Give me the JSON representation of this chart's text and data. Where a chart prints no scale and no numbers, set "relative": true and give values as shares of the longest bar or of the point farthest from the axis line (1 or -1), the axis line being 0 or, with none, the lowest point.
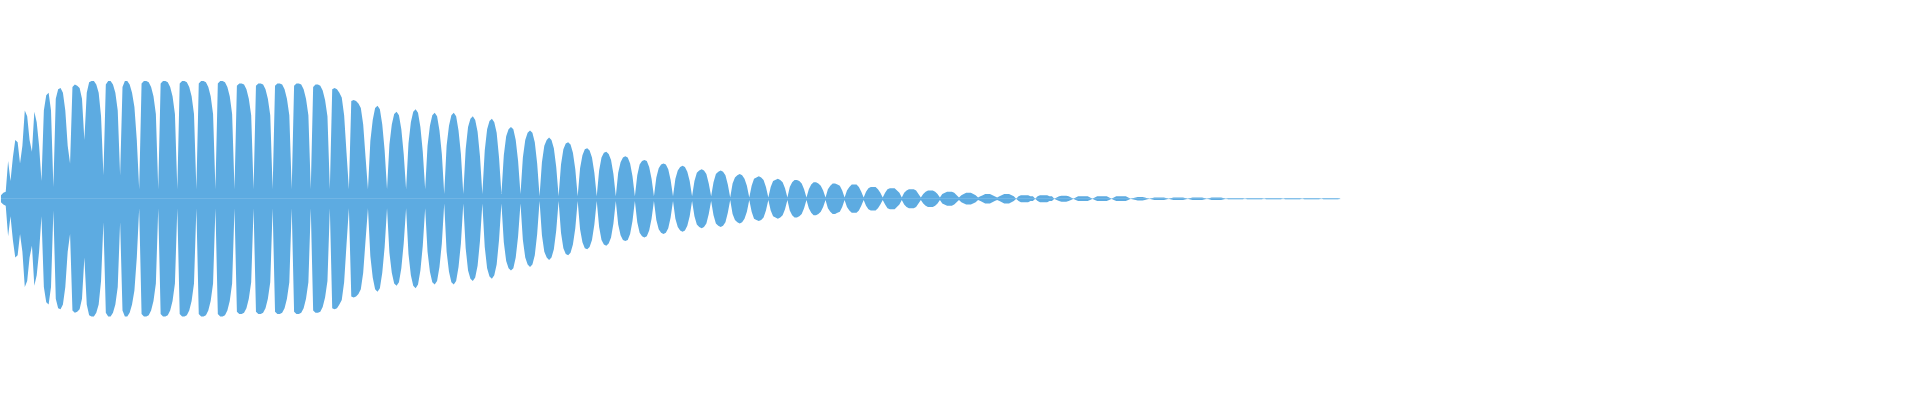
{
  "chart_data": {
    "type": "area",
    "relative": true,
    "categories": [
      null,
      null,
      null,
      null,
      null,
      null,
      null,
      null,
      null,
      null,
      null,
      null,
      null,
      null,
      null,
      null,
      null,
      null,
      null,
      null,
      null,
      null,
      null,
      null,
      null,
      null,
      null,
      null,
      null,
      null,
      null,
      null,
      null,
      null,
      null,
      null,
      null,
      null,
      null,
      null,
      null,
      null,
      null,
      null,
      null,
      null,
      null,
      null,
      null,
      null,
      null,
      null,
      null,
      null,
      null,
      null,
      null,
      null,
      null,
      null,
      null,
      null,
      null,
      null,
      null,
      null,
      null,
      null,
      null,
      null,
      null,
      null,
      null,
      null,
      null,
      null,
      null,
      null,
      null,
      null,
      null,
      null,
      null,
      null,
      null,
      null,
      null,
      null,
      null,
      null,
      null,
      null,
      null,
      null,
      null,
      null,
      null,
      null,
      null,
      null,
      null,
      null,
      null,
      null,
      null,
      null,
      null,
      null,
      null,
      null,
      null,
      null,
      null,
      null,
      null,
      null,
      null,
      null,
      null,
      null,
      null,
      null,
      null,
      null,
      null,
      null,
      null,
      null,
      null,
      null,
      null,
      null,
      null,
      null,
      null,
      null,
      null,
      null,
      null,
      null,
      null,
      null,
      null,
      null,
      null,
      null,
      null,
      null,
      null,
      null,
      null,
      null,
      null,
      null,
      null,
      null,
      null,
      null,
      null,
      null,
      null,
      null,
      null,
      null,
      null,
      null,
      null,
      null,
      null,
      null,
      null,
      null,
      null,
      null,
      null,
      null,
      null,
      null,
      null,
      null,
      null,
      null,
      null,
      null,
      null,
      null,
      null,
      null,
      null,
      null,
      null,
      null,
      null,
      null,
      null,
      null,
      null,
      null,
      null,
      null,
      null,
      null,
      null,
      null,
      null,
      null,
      null,
      null,
      null,
      null,
      null,
      null,
      null,
      null,
      null,
      null,
      null,
      null,
      null,
      null,
      null,
      null,
      null,
      null,
      null,
      null,
      null,
      null,
      null,
      null,
      null,
      null,
      null,
      null,
      null,
      null,
      null,
      null,
      null,
      null,
      null,
      null,
      null,
      null,
      null,
      null,
      null,
      null,
      null,
      null,
      null,
      null,
      null,
      null,
      null,
      null,
      null,
      null,
      null,
      null,
      null,
      null,
      null,
      null,
      null,
      null,
      null,
      null,
      null,
      null,
      null,
      null,
      null,
      null,
      null,
      null,
      null,
      null,
      null,
      null,
      null,
      null,
      null,
      null,
      null,
      null,
      null,
      null,
      null,
      null,
      null,
      null,
      null,
      null,
      null,
      null,
      null,
      null,
      null,
      null,
      null,
      null,
      null,
      null,
      null,
      null,
      null,
      null,
      null,
      null,
      null,
      null,
      null,
      null,
      null,
      null,
      null,
      null,
      null,
      null,
      null,
      null,
      null,
      null,
      null,
      null,
      null,
      null,
      null,
      null,
      null,
      null,
      null,
      null,
      null,
      null,
      null,
      null,
      null,
      null,
      null,
      null,
      null,
      null,
      null,
      null,
      null,
      null,
      null,
      null,
      null,
      null,
      null,
      null,
      null,
      null,
      null,
      null,
      null,
      null,
      null,
      null,
      null,
      null,
      null,
      null,
      null,
      null,
      null,
      null,
      null,
      null,
      null,
      null,
      null,
      null,
      null,
      null,
      null,
      null,
      null,
      null,
      null,
      null,
      null,
      null,
      null,
      null,
      null,
      null,
      null,
      null,
      null,
      null,
      null,
      null,
      null,
      null,
      null,
      null,
      null,
      null,
      null,
      null,
      null,
      null,
      null,
      null,
      null,
      null,
      null,
      null,
      null,
      null,
      null,
      null,
      null,
      null,
      null,
      null,
      null,
      null,
      null,
      null,
      null,
      null,
      null,
      null,
      null,
      null,
      null,
      null,
      null,
      null,
      null,
      null,
      null,
      null,
      null,
      null,
      null,
      null,
      null,
      null,
      null,
      null,
      null,
      null,
      null,
      null,
      null,
      null,
      null,
      null,
      null,
      null,
      null,
      null,
      null,
      null,
      null,
      null,
      null,
      null,
      null,
      null,
      null,
      null,
      null,
      null,
      null,
      null,
      null,
      null,
      null,
      null,
      null,
      null,
      null,
      null,
      null,
      null,
      null,
      null,
      null,
      null,
      null,
      null,
      null,
      null,
      null,
      null,
      null,
      null,
      null,
      null,
      null,
      null,
      null,
      null,
      null,
      null,
      null,
      null,
      null,
      null,
      null,
      null,
      null,
      null,
      null,
      null,
      null,
      null,
      null,
      null,
      null,
      null,
      null,
      null,
      null,
      null,
      null,
      null,
      null,
      null,
      null,
      null,
      null,
      null,
      null,
      null,
      null,
      null,
      null,
      null,
      null,
      null,
      null,
      null,
      null,
      null,
      null,
      null,
      null,
      null,
      null,
      null,
      null,
      null,
      null,
      null,
      null,
      null,
      null,
      null,
      null,
      null,
      null,
      null,
      null,
      null,
      null
    ],
    "series": [
      {
        "color": "#5dabe1",
        "values": [
          0.03,
          0.05,
          0.06,
          0.32,
          0.15,
          0.35,
          0.5,
          0.48,
          0.3,
          0.45,
          0.75,
          0.7,
          0.5,
          0.4,
          0.74,
          0.65,
          0.45,
          0.15,
          0.75,
          0.88,
          0.9,
          0.75,
          0.1,
          0.85,
          0.93,
          0.94,
          0.9,
          0.75,
          0.45,
          0.3,
          0.95,
          0.97,
          0.96,
          0.94,
          0.85,
          0.5,
          0.9,
          0.99,
          1.0,
          1.0,
          0.97,
          0.9,
          0.7,
          0.2,
          0.97,
          1.0,
          1.0,
          0.97,
          0.9,
          0.75,
          0.2,
          0.95,
          1.0,
          1.0,
          0.97,
          0.9,
          0.78,
          0.5,
          0.08,
          0.98,
          1.0,
          1.0,
          0.99,
          0.95,
          0.87,
          0.72,
          0.08,
          0.98,
          1.0,
          1.0,
          0.99,
          0.95,
          0.87,
          0.72,
          0.08,
          0.98,
          1.0,
          1.0,
          0.99,
          0.95,
          0.87,
          0.72,
          0.08,
          0.98,
          1.0,
          1.0,
          0.99,
          0.95,
          0.87,
          0.72,
          0.08,
          0.98,
          1.0,
          1.0,
          0.99,
          0.95,
          0.87,
          0.72,
          0.08,
          0.96,
          0.98,
          0.98,
          0.97,
          0.93,
          0.85,
          0.71,
          0.08,
          0.96,
          0.98,
          0.98,
          0.97,
          0.93,
          0.85,
          0.71,
          0.08,
          0.96,
          0.98,
          0.98,
          0.97,
          0.93,
          0.85,
          0.71,
          0.08,
          0.96,
          0.98,
          0.98,
          0.97,
          0.93,
          0.85,
          0.71,
          0.08,
          0.95,
          0.97,
          0.97,
          0.96,
          0.92,
          0.84,
          0.7,
          0.08,
          0.93,
          0.94,
          0.93,
          0.9,
          0.86,
          0.71,
          0.39,
          0.08,
          0.83,
          0.84,
          0.83,
          0.81,
          0.77,
          0.63,
          0.35,
          0.08,
          0.49,
          0.67,
          0.77,
          0.79,
          0.76,
          0.63,
          0.41,
          0.08,
          0.46,
          0.63,
          0.72,
          0.74,
          0.71,
          0.59,
          0.38,
          0.08,
          0.47,
          0.65,
          0.74,
          0.76,
          0.73,
          0.61,
          0.4,
          0.08,
          0.45,
          0.62,
          0.71,
          0.73,
          0.7,
          0.58,
          0.38,
          0.04,
          0.45,
          0.62,
          0.71,
          0.73,
          0.7,
          0.58,
          0.38,
          0.04,
          0.42,
          0.61,
          0.68,
          0.7,
          0.67,
          0.57,
          0.36,
          0.04,
          0.41,
          0.59,
          0.66,
          0.68,
          0.65,
          0.56,
          0.35,
          0.04,
          0.37,
          0.53,
          0.59,
          0.61,
          0.59,
          0.5,
          0.32,
          0.04,
          0.35,
          0.5,
          0.56,
          0.58,
          0.56,
          0.48,
          0.3,
          0.02,
          0.31,
          0.45,
          0.5,
          0.52,
          0.5,
          0.43,
          0.27,
          0.02,
          0.29,
          0.42,
          0.47,
          0.48,
          0.46,
          0.39,
          0.25,
          0.02,
          0.26,
          0.37,
          0.42,
          0.43,
          0.41,
          0.35,
          0.22,
          0.02,
          0.24,
          0.35,
          0.39,
          0.4,
          0.38,
          0.33,
          0.21,
          0.02,
          0.22,
          0.31,
          0.35,
          0.36,
          0.35,
          0.3,
          0.19,
          0.02,
          0.2,
          0.29,
          0.32,
          0.33,
          0.32,
          0.27,
          0.17,
          0.02,
          0.18,
          0.26,
          0.29,
          0.3,
          0.29,
          0.25,
          0.16,
          0.02,
          0.17,
          0.24,
          0.27,
          0.28,
          0.27,
          0.23,
          0.15,
          0.02,
          0.15,
          0.22,
          0.24,
          0.25,
          0.24,
          0.21,
          0.13,
          0.02,
          0.14,
          0.21,
          0.23,
          0.24,
          0.23,
          0.2,
          0.12,
          0.01,
          0.13,
          0.18,
          0.2,
          0.21,
          0.2,
          0.17,
          0.11,
          0.01,
          0.11,
          0.17,
          0.18,
          0.19,
          0.18,
          0.16,
          0.1,
          0.01,
          0.1,
          0.15,
          0.16,
          0.17,
          0.16,
          0.14,
          0.09,
          0.01,
          0.1,
          0.14,
          0.16,
          0.16,
          0.15,
          0.13,
          0.08,
          0.01,
          0.08,
          0.12,
          0.14,
          0.14,
          0.13,
          0.11,
          0.07,
          0.01,
          0.08,
          0.11,
          0.13,
          0.13,
          0.12,
          0.11,
          0.07,
          0.01,
          0.07,
          0.1,
          0.12,
          0.12,
          0.12,
          0.1,
          0.06,
          0.01,
          0.06,
          0.09,
          0.1,
          0.1,
          0.1,
          0.08,
          0.05,
          0.01,
          0.05,
          0.08,
          0.09,
          0.09,
          0.09,
          0.07,
          0.05,
          0.01,
          0.05,
          0.07,
          0.08,
          0.08,
          0.08,
          0.07,
          0.04,
          0.01,
          0.04,
          0.06,
          0.07,
          0.07,
          0.07,
          0.06,
          0.04,
          0.01,
          0.04,
          0.05,
          0.06,
          0.06,
          0.06,
          0.05,
          0.03,
          0.01,
          0.03,
          0.04,
          0.05,
          0.05,
          0.05,
          0.04,
          0.03,
          0.01,
          0.02,
          0.03,
          0.04,
          0.04,
          0.04,
          0.03,
          0.02,
          0.01,
          0.02,
          0.03,
          0.04,
          0.04,
          0.04,
          0.03,
          0.02,
          0,
          0.02,
          0.03,
          0.03,
          0.03,
          0.03,
          0.02,
          0.02,
          0,
          0.02,
          0.03,
          0.03,
          0.03,
          0.03,
          0.02,
          0.02,
          0,
          0.01,
          0.02,
          0.025,
          0.025,
          0.025,
          0.02,
          0.01,
          0,
          0.01,
          0.02,
          0.02,
          0.02,
          0.02,
          0.02,
          0.01,
          0,
          0.01,
          0.02,
          0.02,
          0.02,
          0.02,
          0.02,
          0.01,
          0,
          0.01,
          0.02,
          0.02,
          0.02,
          0.02,
          0.02,
          0.01,
          0,
          0.005,
          0.01,
          0.015,
          0.015,
          0.015,
          0.01,
          0.005,
          0,
          0.005,
          0.01,
          0.01,
          0.01,
          0.01,
          0.01,
          0.005,
          0,
          0.005,
          0.01,
          0.01,
          0.01,
          0.01,
          0.01,
          0.005,
          0,
          0.005,
          0.01,
          0.01,
          0.01,
          0.01,
          0.01,
          0.005,
          0,
          0.005,
          0.01,
          0.01,
          0.01,
          0.01,
          0.01,
          0.005,
          0,
          0.005,
          0.005,
          0.005,
          0.005,
          0.005,
          0.005,
          0.005,
          0,
          0.005,
          0.005,
          0.005,
          0.005,
          0.005,
          0.005,
          0.005,
          0,
          0.005,
          0.005,
          0.005,
          0.005,
          0.005,
          0.005,
          0.005,
          0,
          0.005,
          0.005,
          0.005,
          0.005,
          0.005,
          0.005,
          0.005,
          0,
          0.005,
          0.005,
          0.005,
          0.005,
          0.005,
          0.005,
          0.005,
          0,
          0.005,
          0.005,
          0.005,
          0.005,
          0.005,
          0.005,
          0.005,
          0
        ]
      },
      {
        "color": "#5dabe1",
        "values": [
          -0.03,
          -0.05,
          -0.06,
          -0.32,
          -0.15,
          -0.35,
          -0.5,
          -0.48,
          -0.3,
          -0.45,
          -0.75,
          -0.7,
          -0.5,
          -0.4,
          -0.74,
          -0.65,
          -0.45,
          -0.15,
          -0.75,
          -0.88,
          -0.9,
          -0.75,
          -0.1,
          -0.85,
          -0.93,
          -0.94,
          -0.9,
          -0.75,
          -0.45,
          -0.3,
          -0.95,
          -0.97,
          -0.96,
          -0.94,
          -0.85,
          -0.5,
          -0.9,
          -0.99,
          -1.0,
          -1.0,
          -0.97,
          -0.9,
          -0.7,
          -0.2,
          -0.97,
          -1.0,
          -1.0,
          -0.97,
          -0.9,
          -0.75,
          -0.2,
          -0.95,
          -1.0,
          -1.0,
          -0.97,
          -0.9,
          -0.78,
          -0.5,
          -0.08,
          -0.98,
          -1.0,
          -1.0,
          -0.99,
          -0.95,
          -0.87,
          -0.72,
          -0.08,
          -0.98,
          -1.0,
          -1.0,
          -0.99,
          -0.95,
          -0.87,
          -0.72,
          -0.08,
          -0.98,
          -1.0,
          -1.0,
          -0.99,
          -0.95,
          -0.87,
          -0.72,
          -0.08,
          -0.98,
          -1.0,
          -1.0,
          -0.99,
          -0.95,
          -0.87,
          -0.72,
          -0.08,
          -0.98,
          -1.0,
          -1.0,
          -0.99,
          -0.95,
          -0.87,
          -0.72,
          -0.08,
          -0.96,
          -0.98,
          -0.98,
          -0.97,
          -0.93,
          -0.85,
          -0.71,
          -0.08,
          -0.96,
          -0.98,
          -0.98,
          -0.97,
          -0.93,
          -0.85,
          -0.71,
          -0.08,
          -0.96,
          -0.98,
          -0.98,
          -0.97,
          -0.93,
          -0.85,
          -0.71,
          -0.08,
          -0.96,
          -0.98,
          -0.98,
          -0.97,
          -0.93,
          -0.85,
          -0.71,
          -0.08,
          -0.95,
          -0.97,
          -0.97,
          -0.96,
          -0.92,
          -0.84,
          -0.7,
          -0.08,
          -0.93,
          -0.94,
          -0.93,
          -0.9,
          -0.86,
          -0.71,
          -0.39,
          -0.08,
          -0.83,
          -0.84,
          -0.83,
          -0.81,
          -0.77,
          -0.63,
          -0.35,
          -0.08,
          -0.49,
          -0.67,
          -0.77,
          -0.79,
          -0.76,
          -0.63,
          -0.41,
          -0.08,
          -0.46,
          -0.63,
          -0.72,
          -0.74,
          -0.71,
          -0.59,
          -0.38,
          -0.08,
          -0.47,
          -0.65,
          -0.74,
          -0.76,
          -0.73,
          -0.61,
          -0.4,
          -0.08,
          -0.45,
          -0.62,
          -0.71,
          -0.73,
          -0.7,
          -0.58,
          -0.38,
          -0.04,
          -0.45,
          -0.62,
          -0.71,
          -0.73,
          -0.7,
          -0.58,
          -0.38,
          -0.04,
          -0.42,
          -0.61,
          -0.68,
          -0.7,
          -0.67,
          -0.57,
          -0.36,
          -0.04,
          -0.41,
          -0.59,
          -0.66,
          -0.68,
          -0.65,
          -0.56,
          -0.35,
          -0.04,
          -0.37,
          -0.53,
          -0.59,
          -0.61,
          -0.59,
          -0.5,
          -0.32,
          -0.04,
          -0.35,
          -0.5,
          -0.56,
          -0.58,
          -0.56,
          -0.48,
          -0.3,
          -0.02,
          -0.31,
          -0.45,
          -0.5,
          -0.52,
          -0.5,
          -0.43,
          -0.27,
          -0.02,
          -0.29,
          -0.42,
          -0.47,
          -0.48,
          -0.46,
          -0.39,
          -0.25,
          -0.02,
          -0.26,
          -0.37,
          -0.42,
          -0.43,
          -0.41,
          -0.35,
          -0.22,
          -0.02,
          -0.24,
          -0.35,
          -0.39,
          -0.4,
          -0.38,
          -0.33,
          -0.21,
          -0.02,
          -0.22,
          -0.31,
          -0.35,
          -0.36,
          -0.35,
          -0.3,
          -0.19,
          -0.02,
          -0.2,
          -0.29,
          -0.32,
          -0.33,
          -0.32,
          -0.27,
          -0.17,
          -0.02,
          -0.18,
          -0.26,
          -0.29,
          -0.3,
          -0.29,
          -0.25,
          -0.16,
          -0.02,
          -0.17,
          -0.24,
          -0.27,
          -0.28,
          -0.27,
          -0.23,
          -0.15,
          -0.02,
          -0.15,
          -0.22,
          -0.24,
          -0.25,
          -0.24,
          -0.21,
          -0.13,
          -0.02,
          -0.14,
          -0.21,
          -0.23,
          -0.24,
          -0.23,
          -0.2,
          -0.12,
          -0.01,
          -0.13,
          -0.18,
          -0.2,
          -0.21,
          -0.2,
          -0.17,
          -0.11,
          -0.01,
          -0.11,
          -0.17,
          -0.18,
          -0.19,
          -0.18,
          -0.16,
          -0.1,
          -0.01,
          -0.1,
          -0.15,
          -0.16,
          -0.17,
          -0.16,
          -0.14,
          -0.09,
          -0.01,
          -0.1,
          -0.14,
          -0.16,
          -0.16,
          -0.15,
          -0.13,
          -0.08,
          -0.01,
          -0.08,
          -0.12,
          -0.14,
          -0.14,
          -0.13,
          -0.11,
          -0.07,
          -0.01,
          -0.08,
          -0.11,
          -0.13,
          -0.13,
          -0.12,
          -0.11,
          -0.07,
          -0.01,
          -0.07,
          -0.1,
          -0.12,
          -0.12,
          -0.12,
          -0.1,
          -0.06,
          -0.01,
          -0.06,
          -0.09,
          -0.1,
          -0.1,
          -0.1,
          -0.08,
          -0.05,
          -0.01,
          -0.05,
          -0.08,
          -0.09,
          -0.09,
          -0.09,
          -0.07,
          -0.05,
          -0.01,
          -0.05,
          -0.07,
          -0.08,
          -0.08,
          -0.08,
          -0.07,
          -0.04,
          -0.01,
          -0.04,
          -0.06,
          -0.07,
          -0.07,
          -0.07,
          -0.06,
          -0.04,
          -0.01,
          -0.04,
          -0.05,
          -0.06,
          -0.06,
          -0.06,
          -0.05,
          -0.03,
          -0.01,
          -0.03,
          -0.04,
          -0.05,
          -0.05,
          -0.05,
          -0.04,
          -0.03,
          -0.01,
          -0.02,
          -0.03,
          -0.04,
          -0.04,
          -0.04,
          -0.03,
          -0.02,
          -0.01,
          -0.02,
          -0.03,
          -0.04,
          -0.04,
          -0.04,
          -0.03,
          -0.02,
          0,
          -0.02,
          -0.03,
          -0.03,
          -0.03,
          -0.03,
          -0.02,
          -0.02,
          0,
          -0.02,
          -0.03,
          -0.03,
          -0.03,
          -0.03,
          -0.02,
          -0.02,
          0,
          -0.01,
          -0.02,
          -0.025,
          -0.025,
          -0.025,
          -0.02,
          -0.01,
          0,
          -0.01,
          -0.02,
          -0.02,
          -0.02,
          -0.02,
          -0.02,
          -0.01,
          0,
          -0.01,
          -0.02,
          -0.02,
          -0.02,
          -0.02,
          -0.02,
          -0.01,
          0,
          -0.01,
          -0.02,
          -0.02,
          -0.02,
          -0.02,
          -0.02,
          -0.01,
          0,
          -0.005,
          -0.01,
          -0.015,
          -0.015,
          -0.015,
          -0.01,
          -0.005,
          0,
          -0.005,
          -0.01,
          -0.01,
          -0.01,
          -0.01,
          -0.01,
          -0.005,
          0,
          -0.005,
          -0.01,
          -0.01,
          -0.01,
          -0.01,
          -0.01,
          -0.005,
          0,
          -0.005,
          -0.01,
          -0.01,
          -0.01,
          -0.01,
          -0.01,
          -0.005,
          0,
          -0.005,
          -0.01,
          -0.01,
          -0.01,
          -0.01,
          -0.01,
          -0.005,
          0,
          -0.005,
          -0.005,
          -0.005,
          -0.005,
          -0.005,
          -0.005,
          -0.005,
          0,
          -0.005,
          -0.005,
          -0.005,
          -0.005,
          -0.005,
          -0.005,
          -0.005,
          0,
          -0.005,
          -0.005,
          -0.005,
          -0.005,
          -0.005,
          -0.005,
          -0.005,
          0,
          -0.005,
          -0.005,
          -0.005,
          -0.005,
          -0.005,
          -0.005,
          -0.005,
          0,
          -0.005,
          -0.005,
          -0.005,
          -0.005,
          -0.005,
          -0.005,
          -0.005,
          0,
          -0.005,
          -0.005,
          -0.005,
          -0.005,
          -0.005,
          -0.005,
          -0.005,
          0
        ]
      }
    ]
  }
}
